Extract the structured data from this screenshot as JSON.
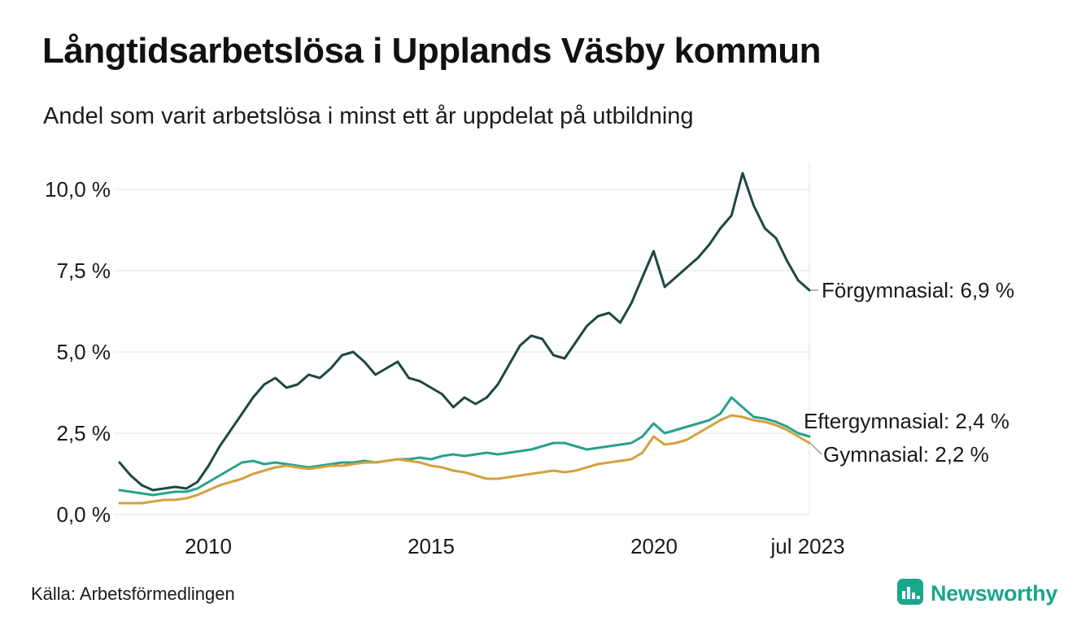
{
  "chart_data": {
    "type": "line",
    "title": "Långtidsarbetslösa i Upplands Väsby kommun",
    "subtitle": "Andel som varit arbetslösa i minst ett år uppdelat på utbildning",
    "source": "Källa: Arbetsförmedlingen",
    "xlabel": "",
    "ylabel": "",
    "ylim": [
      0,
      10.5
    ],
    "xlim": [
      2008,
      2023.5
    ],
    "grid": "horizontal",
    "legend_position": "line-end-labels",
    "y_ticks": [
      {
        "value": 0,
        "label": "0,0 %"
      },
      {
        "value": 2.5,
        "label": "2,5 %"
      },
      {
        "value": 5,
        "label": "5,0 %"
      },
      {
        "value": 7.5,
        "label": "7,5 %"
      },
      {
        "value": 10,
        "label": "10,0 %"
      }
    ],
    "x_ticks": [
      {
        "value": 2010,
        "label": "2010"
      },
      {
        "value": 2015,
        "label": "2015"
      },
      {
        "value": 2020,
        "label": "2020"
      },
      {
        "value": 2023.5,
        "label": "jul 2023"
      }
    ],
    "x": [
      2008,
      2008.25,
      2008.5,
      2008.75,
      2009,
      2009.25,
      2009.5,
      2009.75,
      2010,
      2010.25,
      2010.5,
      2010.75,
      2011,
      2011.25,
      2011.5,
      2011.75,
      2012,
      2012.25,
      2012.5,
      2012.75,
      2013,
      2013.25,
      2013.5,
      2013.75,
      2014,
      2014.25,
      2014.5,
      2014.75,
      2015,
      2015.25,
      2015.5,
      2015.75,
      2016,
      2016.25,
      2016.5,
      2016.75,
      2017,
      2017.25,
      2017.5,
      2017.75,
      2018,
      2018.25,
      2018.5,
      2018.75,
      2019,
      2019.25,
      2019.5,
      2019.75,
      2020,
      2020.25,
      2020.5,
      2020.75,
      2021,
      2021.25,
      2021.5,
      2021.75,
      2022,
      2022.25,
      2022.5,
      2022.75,
      2023,
      2023.25,
      2023.5
    ],
    "series": [
      {
        "name": "Förgymnasial",
        "color": "#1e4744",
        "end_value": 6.9,
        "end_label": "Förgymnasial: 6,9 %",
        "values": [
          1.6,
          1.2,
          0.9,
          0.75,
          0.8,
          0.85,
          0.8,
          1.0,
          1.5,
          2.1,
          2.6,
          3.1,
          3.6,
          4.0,
          4.2,
          3.9,
          4.0,
          4.3,
          4.2,
          4.5,
          4.9,
          5.0,
          4.7,
          4.3,
          4.5,
          4.7,
          4.2,
          4.1,
          3.9,
          3.7,
          3.3,
          3.6,
          3.4,
          3.6,
          4.0,
          4.6,
          5.2,
          5.5,
          5.4,
          4.9,
          4.8,
          5.3,
          5.8,
          6.1,
          6.2,
          5.9,
          6.5,
          7.3,
          8.1,
          7.0,
          7.3,
          7.6,
          7.9,
          8.3,
          8.8,
          9.2,
          10.5,
          9.5,
          8.8,
          8.5,
          7.8,
          7.2,
          6.9
        ]
      },
      {
        "name": "Eftergymnasial",
        "color": "#26a28c",
        "end_value": 2.4,
        "end_label": "Eftergymnasial: 2,4 %",
        "values": [
          0.75,
          0.7,
          0.65,
          0.6,
          0.65,
          0.7,
          0.7,
          0.8,
          1.0,
          1.2,
          1.4,
          1.6,
          1.65,
          1.55,
          1.6,
          1.55,
          1.5,
          1.45,
          1.5,
          1.55,
          1.6,
          1.6,
          1.65,
          1.6,
          1.65,
          1.7,
          1.7,
          1.75,
          1.7,
          1.8,
          1.85,
          1.8,
          1.85,
          1.9,
          1.85,
          1.9,
          1.95,
          2.0,
          2.1,
          2.2,
          2.2,
          2.1,
          2.0,
          2.05,
          2.1,
          2.15,
          2.2,
          2.4,
          2.8,
          2.5,
          2.6,
          2.7,
          2.8,
          2.9,
          3.1,
          3.6,
          3.3,
          3.0,
          2.95,
          2.85,
          2.7,
          2.5,
          2.4
        ]
      },
      {
        "name": "Gymnasial",
        "color": "#d3a23e",
        "end_value": 2.2,
        "end_label": "Gymnasial: 2,2 %",
        "values": [
          0.35,
          0.35,
          0.35,
          0.4,
          0.45,
          0.45,
          0.5,
          0.6,
          0.75,
          0.9,
          1.0,
          1.1,
          1.25,
          1.35,
          1.45,
          1.5,
          1.45,
          1.4,
          1.45,
          1.5,
          1.5,
          1.55,
          1.6,
          1.6,
          1.65,
          1.7,
          1.65,
          1.6,
          1.5,
          1.45,
          1.35,
          1.3,
          1.2,
          1.1,
          1.1,
          1.15,
          1.2,
          1.25,
          1.3,
          1.35,
          1.3,
          1.35,
          1.45,
          1.55,
          1.6,
          1.65,
          1.7,
          1.9,
          2.4,
          2.15,
          2.2,
          2.3,
          2.5,
          2.7,
          2.9,
          3.05,
          3.0,
          2.9,
          2.85,
          2.75,
          2.6,
          2.4,
          2.2
        ]
      }
    ]
  },
  "footer": {
    "brand": "Newsworthy",
    "brand_color": "#18a78c"
  }
}
